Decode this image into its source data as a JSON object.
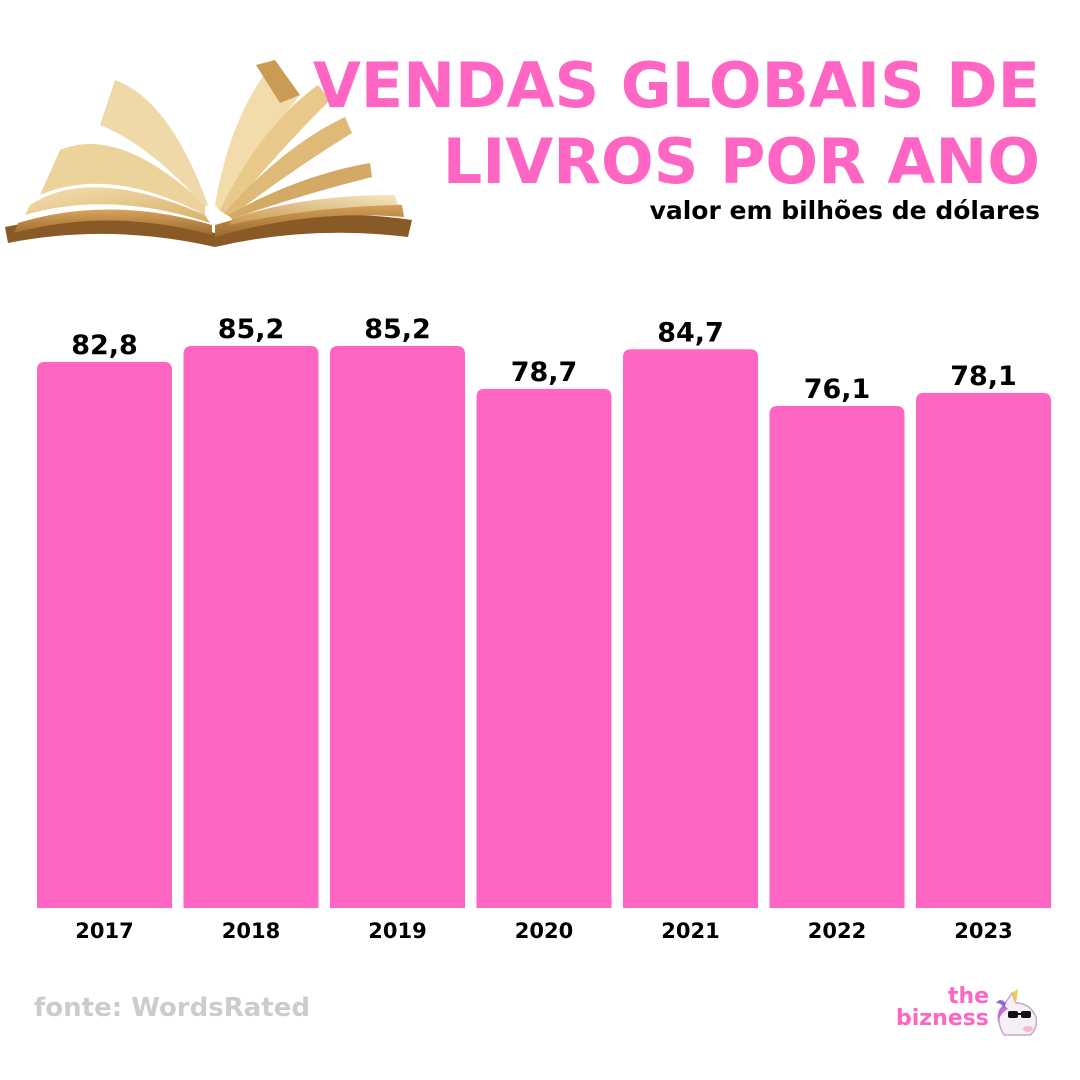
{
  "colors": {
    "accent": "#ff66c4",
    "text": "#000000",
    "source": "#cccccc"
  },
  "header": {
    "title_line1": "VENDAS GLOBAIS DE",
    "title_line2": "LIVROS POR ANO",
    "subtitle": "valor em bilhões de dólares",
    "image_icon": "open-book-icon"
  },
  "chart_data": {
    "type": "bar",
    "categories": [
      "2017",
      "2018",
      "2019",
      "2020",
      "2021",
      "2022",
      "2023"
    ],
    "values": [
      82.8,
      85.2,
      85.2,
      78.7,
      84.7,
      76.1,
      78.1
    ],
    "value_labels": [
      "82,8",
      "85,2",
      "85,2",
      "78,7",
      "84,7",
      "76,1",
      "78,1"
    ],
    "title": "VENDAS GLOBAIS DE LIVROS POR ANO",
    "subtitle": "valor em bilhões de dólares",
    "xlabel": "",
    "ylabel": "",
    "ylim": [
      0,
      85.2
    ],
    "grid": false,
    "bar_color": "#ff66c4"
  },
  "footer": {
    "source": "fonte: WordsRated",
    "logo_the": "the",
    "logo_bizness": "bizness",
    "logo_icon": "unicorn-sunglasses-icon"
  }
}
